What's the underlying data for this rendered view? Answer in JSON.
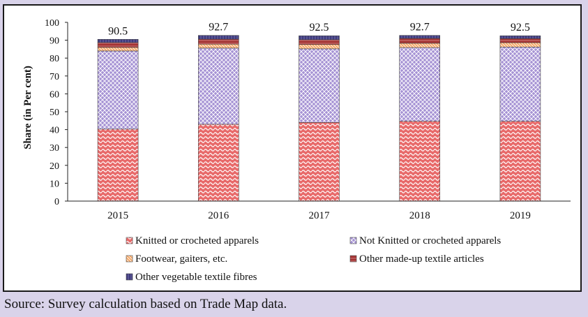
{
  "chart_data": {
    "type": "bar",
    "stacked": true,
    "categories": [
      "2015",
      "2016",
      "2017",
      "2018",
      "2019"
    ],
    "series": [
      {
        "name": "Knitted or crocheted apparels",
        "color": "#e05d5d",
        "values": [
          40.3,
          43.0,
          44.0,
          44.7,
          44.7
        ]
      },
      {
        "name": "Not Knitted or crocheted apparels",
        "color": "#a994d6",
        "values": [
          43.7,
          42.6,
          41.2,
          41.2,
          41.5
        ]
      },
      {
        "name": "Footwear, gaiters, etc.",
        "color": "#f4a460",
        "values": [
          2.0,
          2.2,
          2.4,
          2.4,
          2.4
        ]
      },
      {
        "name": "Other made-up textile articles",
        "color": "#9b2b2b",
        "values": [
          2.7,
          2.8,
          2.7,
          2.7,
          2.3
        ]
      },
      {
        "name": "Other vegetable textile fibres",
        "color": "#3d3a7a",
        "values": [
          1.8,
          2.1,
          2.2,
          1.7,
          1.6
        ]
      }
    ],
    "totals": [
      "90.5",
      "92.7",
      "92.5",
      "92.7",
      "92.5"
    ],
    "ylabel": "Share (in Per cent)",
    "xlabel": "",
    "ylim": [
      0,
      100
    ],
    "yticks": [
      0,
      10,
      20,
      30,
      40,
      50,
      60,
      70,
      80,
      90,
      100
    ],
    "legend_position": "bottom"
  },
  "source": "Source: Survey calculation based on Trade Map data."
}
